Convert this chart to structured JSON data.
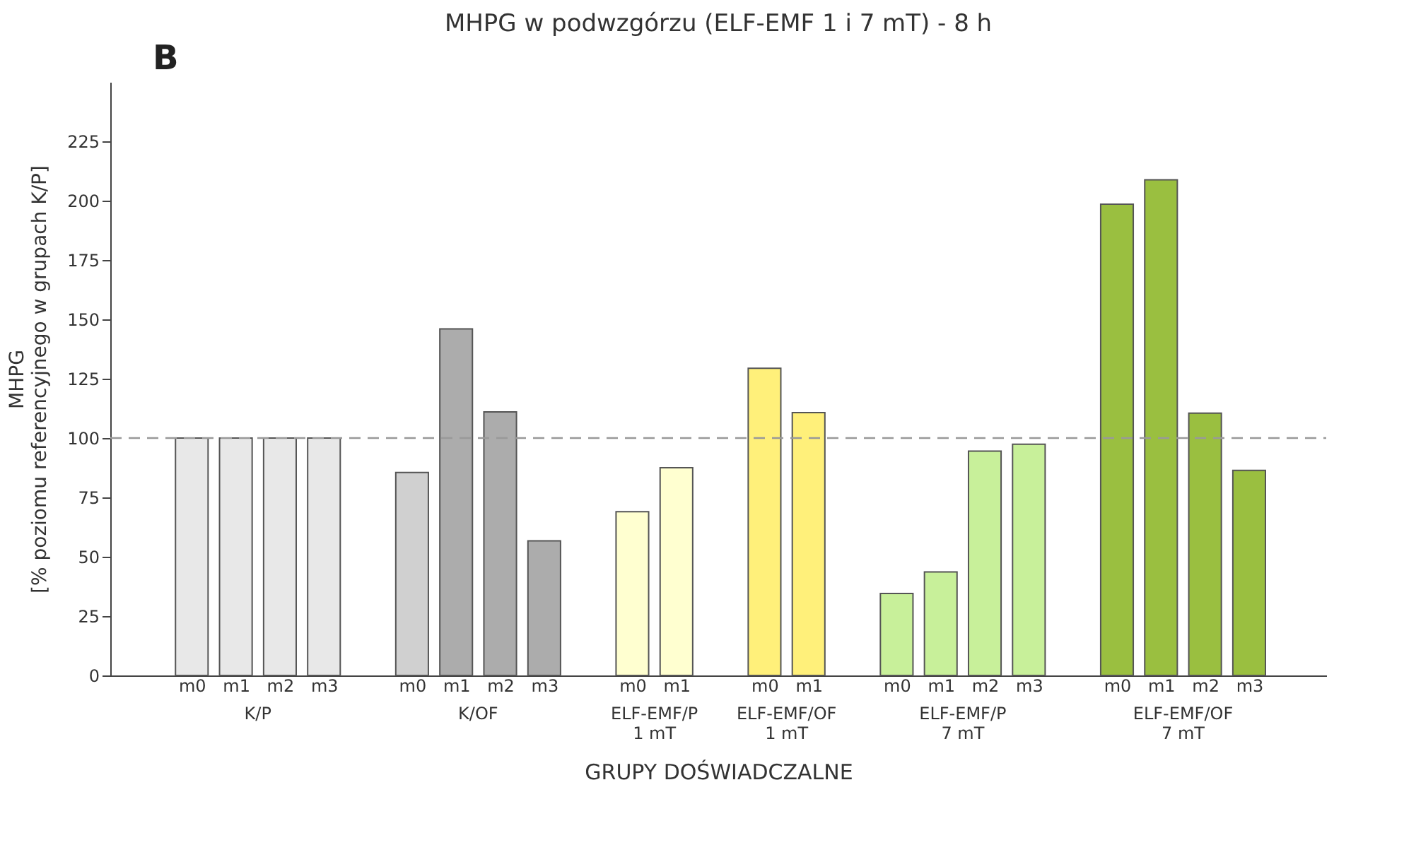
{
  "chart_data": {
    "type": "bar",
    "title": "MHPG w podwzgórzu (ELF-EMF 1 i 7 mT) - 8 h",
    "xlabel": "GRUPY DOŚWIADCZALNE",
    "ylabel": "MHPG\n[% poziomu referencyjnego w grupach K/P]",
    "annotations": [
      "B"
    ],
    "categories": [
      "m0",
      "m1",
      "m2",
      "m3",
      "m0",
      "m1",
      "m2",
      "m3",
      "m0",
      "m1",
      "m0",
      "m1",
      "m0",
      "m1",
      "m2",
      "m3",
      "m0",
      "m1",
      "m2",
      "m3"
    ],
    "series": [
      {
        "name": "K/P",
        "color": "#e8e8e8",
        "values": [
          100,
          100,
          100,
          100,
          null,
          null,
          null,
          null,
          null,
          null,
          null,
          null,
          null,
          null,
          null,
          null,
          null,
          null,
          null,
          null
        ]
      },
      {
        "name": "K/OF",
        "colors": [
          null,
          null,
          null,
          null,
          "#d0d0d0",
          "#acacac",
          "#acacac",
          "#acacac",
          null,
          null,
          null,
          null,
          null,
          null,
          null,
          null,
          null,
          null,
          null,
          null
        ],
        "values": [
          null,
          null,
          null,
          null,
          85.5,
          146,
          111,
          56.7,
          null,
          null,
          null,
          null,
          null,
          null,
          null,
          null,
          null,
          null,
          null,
          null
        ]
      },
      {
        "name": "ELF-EMF/P\n1 mT",
        "color": "#ffffd0",
        "values": [
          null,
          null,
          null,
          null,
          null,
          null,
          null,
          null,
          69,
          87.5,
          null,
          null,
          null,
          null,
          null,
          null,
          null,
          null,
          null,
          null
        ]
      },
      {
        "name": "ELF-EMF/OF\n1 mT",
        "color": "#fff07a",
        "values": [
          null,
          null,
          null,
          null,
          null,
          null,
          null,
          null,
          null,
          null,
          129.4,
          110.7,
          null,
          null,
          null,
          null,
          null,
          null,
          null,
          null
        ]
      },
      {
        "name": "ELF-EMF/P\n7 mT",
        "color": "#c8f09a",
        "values": [
          null,
          null,
          null,
          null,
          null,
          null,
          null,
          null,
          null,
          null,
          null,
          null,
          34.5,
          43.6,
          94.5,
          97.4,
          null,
          null,
          null,
          null
        ]
      },
      {
        "name": "ELF-EMF/OF\n7 mT",
        "color": "#9abf40",
        "values": [
          null,
          null,
          null,
          null,
          null,
          null,
          null,
          null,
          null,
          null,
          null,
          null,
          null,
          null,
          null,
          null,
          198.5,
          208.8,
          110.5,
          86.4
        ]
      }
    ],
    "ylim": [
      0,
      250
    ],
    "yticks": [
      0,
      25,
      50,
      75,
      100,
      125,
      150,
      175,
      200,
      225
    ],
    "ref_lines": [
      {
        "axis": "y",
        "value": 100,
        "color": "#999999",
        "line_style": "dashed"
      }
    ],
    "grid": false
  }
}
